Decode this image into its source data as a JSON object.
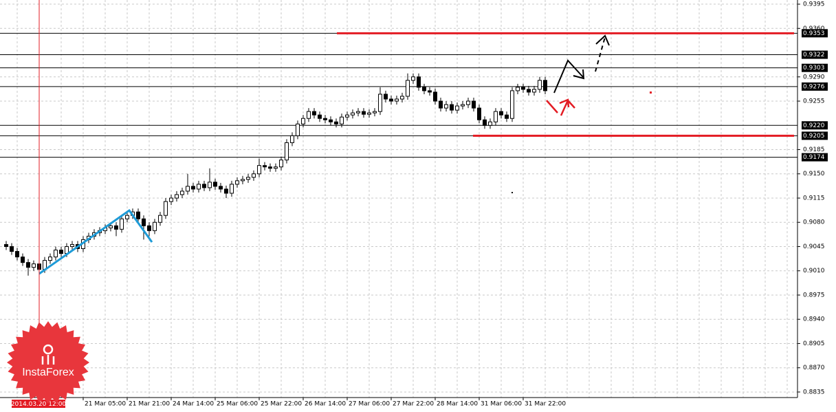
{
  "chart_data": {
    "type": "candlestick",
    "categories": [
      null,
      null,
      null,
      null,
      null,
      null,
      null,
      null,
      null,
      null,
      null,
      null,
      null,
      null,
      "21 Mar 05:00",
      null,
      null,
      null,
      null,
      null,
      null,
      null,
      "21 Mar 21:00",
      null,
      null,
      null,
      null,
      null,
      null,
      null,
      "24 Mar 14:00",
      null,
      null,
      null,
      null,
      null,
      null,
      null,
      "25 Mar 06:00",
      null,
      null,
      null,
      null,
      null,
      null,
      null,
      "25 Mar 22:00",
      null,
      null,
      null,
      null,
      null,
      null,
      null,
      "26 Mar 14:00",
      null,
      null,
      null,
      null,
      null,
      null,
      null,
      "27 Mar 06:00",
      null,
      null,
      null,
      null,
      null,
      null,
      null,
      "27 Mar 22:00",
      null,
      null,
      null,
      null,
      null,
      null,
      null,
      "28 Mar 14:00",
      null,
      null,
      null,
      null,
      null,
      null,
      null,
      "31 Mar 06:00",
      null,
      null,
      null,
      null,
      null,
      null,
      null,
      "31 Mar 22:00",
      null,
      null,
      null,
      null
    ],
    "open": [
      0.9048,
      0.9045,
      0.9038,
      0.903,
      0.9022,
      0.9015,
      0.902,
      0.9012,
      0.9025,
      0.903,
      0.904,
      0.9035,
      0.9045,
      0.9048,
      0.9042,
      0.9055,
      0.906,
      0.9065,
      0.9068,
      0.9072,
      0.9075,
      0.907,
      0.9085,
      0.909,
      0.9095,
      0.9085,
      0.9075,
      0.9068,
      0.908,
      0.909,
      0.911,
      0.9115,
      0.912,
      0.9125,
      0.9132,
      0.9128,
      0.9135,
      0.913,
      0.9138,
      0.9132,
      0.9128,
      0.9122,
      0.9135,
      0.914,
      0.9142,
      0.9145,
      0.915,
      0.9162,
      0.916,
      0.9158,
      0.916,
      0.917,
      0.9195,
      0.9205,
      0.9222,
      0.923,
      0.924,
      0.9235,
      0.923,
      0.9228,
      0.9225,
      0.9222,
      0.9232,
      0.9235,
      0.9238,
      0.924,
      0.9236,
      0.9238,
      0.924,
      0.9265,
      0.9258,
      0.9255,
      0.9258,
      0.9262,
      0.9285,
      0.929,
      0.9275,
      0.927,
      0.9268,
      0.9255,
      0.9245,
      0.925,
      0.9242,
      0.9248,
      0.925,
      0.9255,
      0.9245,
      0.9228,
      0.922,
      0.9225,
      0.924,
      0.9235,
      0.923,
      0.927,
      0.9275,
      0.9272,
      0.9268,
      0.9272,
      0.9285
    ],
    "high": [
      0.9053,
      0.905,
      0.9043,
      0.9035,
      0.9027,
      0.9025,
      0.9025,
      0.903,
      0.9035,
      0.9045,
      0.9045,
      0.905,
      0.9053,
      0.9053,
      0.906,
      0.9065,
      0.907,
      0.9073,
      0.9077,
      0.908,
      0.908,
      0.909,
      0.9095,
      0.91,
      0.91,
      0.909,
      0.908,
      0.9085,
      0.9095,
      0.9115,
      0.912,
      0.9125,
      0.913,
      0.915,
      0.9137,
      0.914,
      0.914,
      0.9158,
      0.9143,
      0.9137,
      0.9133,
      0.914,
      0.9145,
      0.9147,
      0.915,
      0.9155,
      0.9172,
      0.9167,
      0.9165,
      0.9165,
      0.9175,
      0.92,
      0.921,
      0.9227,
      0.9235,
      0.9245,
      0.9245,
      0.924,
      0.9235,
      0.9233,
      0.923,
      0.9237,
      0.924,
      0.9243,
      0.9245,
      0.9245,
      0.9243,
      0.9245,
      0.9275,
      0.927,
      0.9263,
      0.9263,
      0.9267,
      0.9295,
      0.9295,
      0.9295,
      0.928,
      0.9275,
      0.9273,
      0.926,
      0.9255,
      0.9255,
      0.9253,
      0.9255,
      0.926,
      0.926,
      0.925,
      0.9233,
      0.923,
      0.9245,
      0.9245,
      0.924,
      0.9275,
      0.928,
      0.928,
      0.9277,
      0.9277,
      0.929,
      0.929
    ],
    "low": [
      0.904,
      0.9033,
      0.9025,
      0.9017,
      0.9003,
      0.901,
      0.8995,
      0.9007,
      0.902,
      0.9025,
      0.903,
      0.903,
      0.904,
      0.9037,
      0.9037,
      0.905,
      0.9055,
      0.906,
      0.9063,
      0.9067,
      0.906,
      0.9065,
      0.908,
      0.9085,
      0.908,
      0.9055,
      0.906,
      0.9063,
      0.9075,
      0.9085,
      0.9105,
      0.911,
      0.9115,
      0.912,
      0.9123,
      0.9123,
      0.9125,
      0.9125,
      0.9127,
      0.9123,
      0.9115,
      0.9117,
      0.913,
      0.9135,
      0.9137,
      0.914,
      0.9145,
      0.9155,
      0.9153,
      0.9153,
      0.9155,
      0.9165,
      0.919,
      0.92,
      0.9217,
      0.9225,
      0.923,
      0.9225,
      0.9223,
      0.922,
      0.9217,
      0.9217,
      0.9227,
      0.923,
      0.9233,
      0.9231,
      0.9231,
      0.9233,
      0.9235,
      0.9253,
      0.925,
      0.925,
      0.9253,
      0.9257,
      0.928,
      0.927,
      0.9265,
      0.9263,
      0.925,
      0.924,
      0.924,
      0.9237,
      0.9237,
      0.9243,
      0.9245,
      0.924,
      0.9223,
      0.9215,
      0.9215,
      0.922,
      0.923,
      0.9225,
      0.9225,
      0.9265,
      0.9267,
      0.9263,
      0.9263,
      0.9267,
      0.9265
    ],
    "close": [
      0.9045,
      0.9038,
      0.903,
      0.9022,
      0.9015,
      0.902,
      0.9012,
      0.9025,
      0.903,
      0.904,
      0.9035,
      0.9045,
      0.9048,
      0.9042,
      0.9055,
      0.906,
      0.9065,
      0.9068,
      0.9072,
      0.9075,
      0.907,
      0.9085,
      0.909,
      0.9095,
      0.9085,
      0.9075,
      0.9068,
      0.908,
      0.909,
      0.911,
      0.9115,
      0.912,
      0.9125,
      0.9132,
      0.9128,
      0.9135,
      0.913,
      0.9138,
      0.9132,
      0.9128,
      0.9122,
      0.9135,
      0.914,
      0.9142,
      0.9145,
      0.915,
      0.9162,
      0.916,
      0.9158,
      0.916,
      0.917,
      0.9195,
      0.9205,
      0.9222,
      0.923,
      0.924,
      0.9235,
      0.923,
      0.9228,
      0.9225,
      0.9222,
      0.9232,
      0.9235,
      0.9238,
      0.924,
      0.9236,
      0.9238,
      0.924,
      0.9265,
      0.9258,
      0.9255,
      0.9258,
      0.9262,
      0.9285,
      0.929,
      0.9275,
      0.927,
      0.9268,
      0.9255,
      0.9245,
      0.925,
      0.9242,
      0.9248,
      0.925,
      0.9255,
      0.9245,
      0.9228,
      0.922,
      0.9225,
      0.924,
      0.9235,
      0.923,
      0.927,
      0.9275,
      0.9272,
      0.9268,
      0.9272,
      0.9285,
      0.927
    ],
    "ylim": [
      0.8827,
      0.9401
    ],
    "yticks": [
      0.9395,
      {
        "value": 0.936,
        "label": "0.9360"
      },
      {
        "value": 0.929,
        "label": "0.9290"
      },
      0.9255,
      0.9185,
      {
        "value": 0.915,
        "label": "0.9150"
      },
      0.9115,
      {
        "value": 0.908,
        "label": "0.9080"
      },
      0.9045,
      {
        "value": 0.901,
        "label": "0.9010"
      },
      0.8975,
      {
        "value": 0.894,
        "label": "0.8940"
      },
      0.8905,
      {
        "value": 0.887,
        "label": "0.8870"
      },
      0.8835
    ],
    "levels": [
      0.9353,
      0.9322,
      0.9303,
      0.9276,
      {
        "value": 0.922,
        "label": "0.9220"
      },
      0.9205,
      0.9174
    ],
    "target_levels": [
      0.9353,
      0.9205
    ],
    "target_color": "#e31b23",
    "grid": true,
    "crosshair_label": "2014.03.20 12:00",
    "watermark": "InstaForex"
  }
}
